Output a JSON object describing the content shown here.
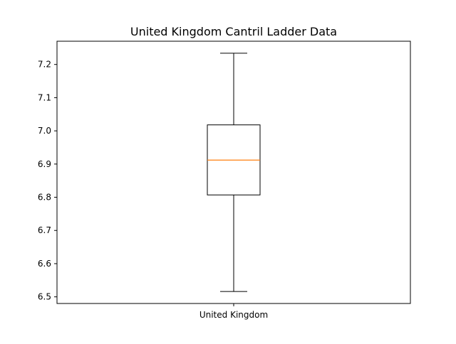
{
  "chart_data": {
    "type": "box",
    "title": "United Kingdom Cantril Ladder Data",
    "xlabel": "",
    "ylabel": "",
    "categories": [
      "United Kingdom"
    ],
    "boxes": [
      {
        "label": "United Kingdom",
        "whisker_low": 6.516,
        "q1": 6.807,
        "median": 6.912,
        "q3": 7.018,
        "whisker_high": 7.234
      }
    ],
    "ylim": [
      6.48,
      7.27
    ],
    "yticks": [
      6.5,
      6.6,
      6.7,
      6.8,
      6.9,
      7.0,
      7.1,
      7.2
    ],
    "ytick_labels": [
      "6.5",
      "6.6",
      "6.7",
      "6.8",
      "6.9",
      "7.0",
      "7.1",
      "7.2"
    ],
    "grid": false,
    "legend": "none",
    "colors": {
      "box": "#000000",
      "median": "#ff7f0e",
      "whisker": "#000000",
      "axes": "#000000"
    }
  }
}
